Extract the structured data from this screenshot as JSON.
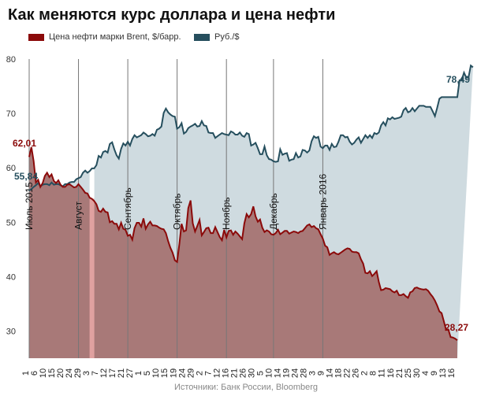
{
  "title": "Как меняются курс доллара и цена нефти",
  "source": "Источники: Банк России, Bloomberg",
  "colors": {
    "brent_fill": "#a87978",
    "brent_line": "#8b0a0a",
    "rub_fill": "#cfdbe0",
    "rub_line": "#264f5e",
    "gap_bar": "#e0a1a0"
  },
  "chart_data": {
    "type": "area",
    "title": "Как меняются курс доллара и цена нефти",
    "ylim": [
      25,
      80
    ],
    "yticks": [
      30,
      40,
      50,
      60,
      70,
      80
    ],
    "grid": false,
    "legend_position": "top-left",
    "x_tick_labels": [
      "1",
      "6",
      "10",
      "15",
      "20",
      "24",
      "29",
      "3",
      "7",
      "12",
      "17",
      "21",
      "27",
      "1",
      "5",
      "10",
      "15",
      "19",
      "24",
      "29",
      "2",
      "7",
      "12",
      "16",
      "21",
      "26",
      "30",
      "5",
      "10",
      "14",
      "19",
      "24",
      "28",
      "3",
      "9",
      "14",
      "18",
      "22",
      "26",
      "2",
      "8",
      "11",
      "16",
      "21",
      "25",
      "30",
      "4",
      "9",
      "13",
      "16"
    ],
    "month_markers": [
      {
        "label": "Июль 2015",
        "index": 0
      },
      {
        "label": "Август",
        "index": 22
      },
      {
        "label": "Сентябрь",
        "index": 44
      },
      {
        "label": "Октябрь",
        "index": 66
      },
      {
        "label": "Ноябрь",
        "index": 88
      },
      {
        "label": "Декабрь",
        "index": 109
      },
      {
        "label": "Январь 2016",
        "index": 131
      }
    ],
    "gap_index": 28,
    "series": [
      {
        "name": "Цена нефти марки Brent, $/барр.",
        "start_label": "62,01",
        "end_label": "28,27",
        "values": [
          62.0,
          63.8,
          61.2,
          57.3,
          57.8,
          56.5,
          57.2,
          58.5,
          59.1,
          58.3,
          58.8,
          57.6,
          57.2,
          57.7,
          56.9,
          56.5,
          56.5,
          56.9,
          57.0,
          56.7,
          56.4,
          56.5,
          57.0,
          56.5,
          56.0,
          55.4,
          55.3,
          54.5,
          54.3,
          53.9,
          53.3,
          52.1,
          51.9,
          52.5,
          51.9,
          51.8,
          50.0,
          50.2,
          49.7,
          49.7,
          48.7,
          49.9,
          48.8,
          48.6,
          47.5,
          47.7,
          46.8,
          48.9,
          49.9,
          49.9,
          49.2,
          50.7,
          48.8,
          49.6,
          50.1,
          49.4,
          49.4,
          49.3,
          49.0,
          48.8,
          48.7,
          48.0,
          46.5,
          45.3,
          44.4,
          43.0,
          42.7,
          46.0,
          49.7,
          48.3,
          48.5,
          52.6,
          54.0,
          49.8,
          48.3,
          49.3,
          50.4,
          47.6,
          48.2,
          48.9,
          49.0,
          48.0,
          48.0,
          49.1,
          48.2,
          47.3,
          46.7,
          48.6,
          47.2,
          48.4,
          48.5,
          47.7,
          48.3,
          47.9,
          47.4,
          46.9,
          49.8,
          51.5,
          50.9,
          51.5,
          52.9,
          51.1,
          50.1,
          50.5,
          49.0,
          48.2,
          48.5,
          48.3,
          47.8,
          47.7,
          48.0,
          48.6,
          47.8,
          48.1,
          48.4,
          48.4,
          47.9,
          48.1,
          48.3,
          48.2,
          48.0,
          48.3,
          48.4,
          48.9,
          49.4,
          49.6,
          49.1,
          49.3,
          48.9,
          48.7,
          47.8,
          47.0,
          45.7,
          45.4,
          44.0,
          44.3,
          44.5,
          44.2,
          44.1,
          44.4,
          44.7,
          45.0,
          45.2,
          45.1,
          44.6,
          44.5,
          44.5,
          44.3,
          43.2,
          42.4,
          40.7,
          40.6,
          41.0,
          40.1,
          40.5,
          41.0,
          39.0,
          37.5,
          37.6,
          37.9,
          37.8,
          37.7,
          37.3,
          37.1,
          37.4,
          36.6,
          36.6,
          36.8,
          36.4,
          36.1,
          37.1,
          37.3,
          37.9,
          38.0,
          37.8,
          37.7,
          37.6,
          37.7,
          37.4,
          36.8,
          36.3,
          35.6,
          34.7,
          33.6,
          33.3,
          31.8,
          30.2,
          30.3,
          28.9,
          28.8,
          28.6,
          28.3
        ]
      },
      {
        "name": "Руб./$",
        "start_label": "55,84",
        "end_label": "78,49",
        "values": [
          55.8,
          56.1,
          56.5,
          56.8,
          57.2,
          56.6,
          56.9,
          57.0,
          57.0,
          56.8,
          57.3,
          56.9,
          57.0,
          57.0,
          56.8,
          56.6,
          57.0,
          57.0,
          57.3,
          57.4,
          57.4,
          57.9,
          58.1,
          58.3,
          59.1,
          59.5,
          59.1,
          59.4,
          59.9,
          59.9,
          60.5,
          62.2,
          61.9,
          62.9,
          63.1,
          62.8,
          64.4,
          64.7,
          63.4,
          62.3,
          61.7,
          63.5,
          64.5,
          64.1,
          64.8,
          64.1,
          65.3,
          66.0,
          65.6,
          65.8,
          66.0,
          66.5,
          66.2,
          65.8,
          65.9,
          66.2,
          65.9,
          67.0,
          67.2,
          67.6,
          70.1,
          70.9,
          70.2,
          69.8,
          69.5,
          69.4,
          67.2,
          67.5,
          68.2,
          66.3,
          66.6,
          67.3,
          67.6,
          67.8,
          68.1,
          67.6,
          67.7,
          68.6,
          67.8,
          67.7,
          66.5,
          66.4,
          66.4,
          65.5,
          65.8,
          66.1,
          66.4,
          66.2,
          66.1,
          66.0,
          66.7,
          66.5,
          66.1,
          66.1,
          66.5,
          65.9,
          65.7,
          66.4,
          66.2,
          64.1,
          64.3,
          64.6,
          63.6,
          62.5,
          62.5,
          63.9,
          62.3,
          61.6,
          61.5,
          61.2,
          61.1,
          61.2,
          63.4,
          62.4,
          62.6,
          62.7,
          61.3,
          61.5,
          61.6,
          62.7,
          61.9,
          62.1,
          63.3,
          63.2,
          62.8,
          63.2,
          64.9,
          65.8,
          65.5,
          65.7,
          63.9,
          63.6,
          64.1,
          64.1,
          63.3,
          64.4,
          63.8,
          63.9,
          64.8,
          66.0,
          66.0,
          65.6,
          65.7,
          64.8,
          64.3,
          64.6,
          65.2,
          65.6,
          64.6,
          65.3,
          66.0,
          65.5,
          66.0,
          65.5,
          66.4,
          66.2,
          66.5,
          67.8,
          68.4,
          67.8,
          69.1,
          68.9,
          69.3,
          69.0,
          69.1,
          69.2,
          69.4,
          70.6,
          71.0,
          70.2,
          70.4,
          71.0,
          70.4,
          70.9,
          71.4,
          71.4,
          71.4,
          71.2,
          71.2,
          71.2,
          70.4,
          69.5,
          71.0,
          72.7,
          73.0,
          73.0,
          73.0,
          73.0,
          73.0,
          73.0,
          73.0,
          73.0,
          76.1,
          76.2,
          77.5,
          76.6,
          76.6,
          78.8,
          78.5
        ]
      }
    ]
  }
}
